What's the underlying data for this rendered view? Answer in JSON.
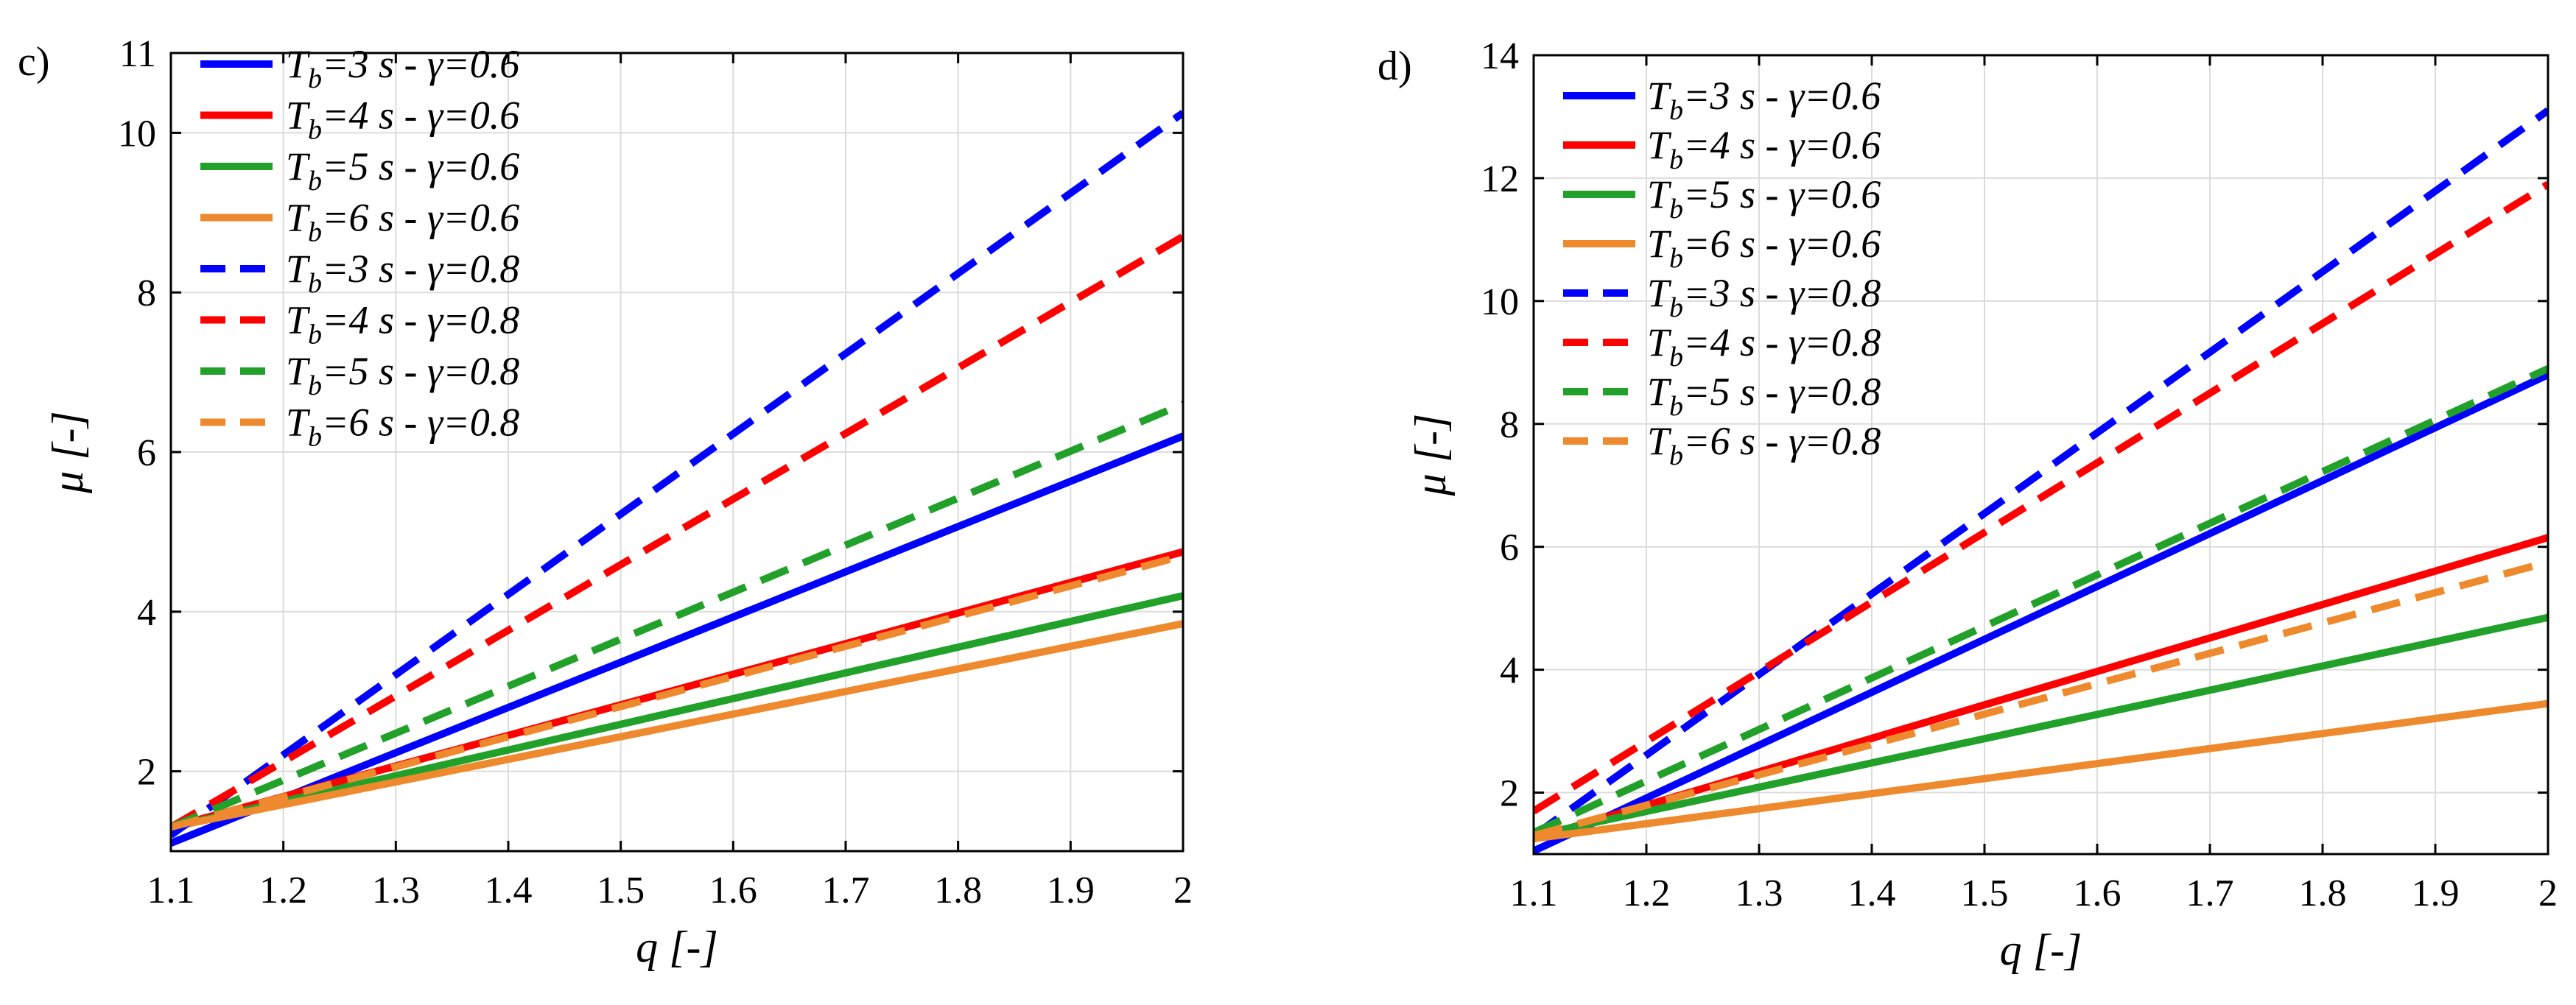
{
  "figure": {
    "description_free": true
  },
  "colors": {
    "blue": "#0000ff",
    "red": "#ff0000",
    "green": "#22a12a",
    "orange": "#ee8a2d",
    "grid": "#dcdcdc",
    "axes": "#000000"
  },
  "chart_data": [
    {
      "type": "line",
      "panel_label": "c)",
      "xlabel": "q [-]",
      "ylabel": "μ [-]",
      "xlim": [
        1.1,
        2.0
      ],
      "ylim": [
        1.0,
        11.0
      ],
      "xticks": [
        1.1,
        1.2,
        1.3,
        1.4,
        1.5,
        1.6,
        1.7,
        1.8,
        1.9,
        2.0
      ],
      "xtick_labels": [
        "1.1",
        "1.2",
        "1.3",
        "1.4",
        "1.5",
        "1.6",
        "1.7",
        "1.8",
        "1.9",
        "2"
      ],
      "yticks": [
        2,
        4,
        6,
        8,
        10,
        11
      ],
      "ytick_labels": [
        "2",
        "4",
        "6",
        "8",
        "10",
        "11"
      ],
      "grid": true,
      "legend_position": "top-left",
      "series": [
        {
          "name": "Tb=3 s - γ=0.6",
          "legend": {
            "base": "T",
            "sub": "b",
            "rest": "=3 s - γ=0.6"
          },
          "color": "blue",
          "style": "solid",
          "x": [
            1.1,
            2.0
          ],
          "y": [
            1.1,
            6.2
          ]
        },
        {
          "name": "Tb=4 s - γ=0.6",
          "legend": {
            "base": "T",
            "sub": "b",
            "rest": "=4 s - γ=0.6"
          },
          "color": "red",
          "style": "solid",
          "x": [
            1.1,
            2.0
          ],
          "y": [
            1.3,
            4.75
          ]
        },
        {
          "name": "Tb=5 s - γ=0.6",
          "legend": {
            "base": "T",
            "sub": "b",
            "rest": "=5 s - γ=0.6"
          },
          "color": "green",
          "style": "solid",
          "x": [
            1.1,
            2.0
          ],
          "y": [
            1.3,
            4.2
          ]
        },
        {
          "name": "Tb=6 s - γ=0.6",
          "legend": {
            "base": "T",
            "sub": "b",
            "rest": "=6 s - γ=0.6"
          },
          "color": "orange",
          "style": "solid",
          "x": [
            1.1,
            2.0
          ],
          "y": [
            1.3,
            3.85
          ]
        },
        {
          "name": "Tb=3 s - γ=0.8",
          "legend": {
            "base": "T",
            "sub": "b",
            "rest": "=3 s - γ=0.8"
          },
          "color": "blue",
          "style": "dashed",
          "x": [
            1.1,
            2.0
          ],
          "y": [
            1.2,
            10.25
          ]
        },
        {
          "name": "Tb=4 s - γ=0.8",
          "legend": {
            "base": "T",
            "sub": "b",
            "rest": "=4 s - γ=0.8"
          },
          "color": "red",
          "style": "dashed",
          "x": [
            1.1,
            2.0
          ],
          "y": [
            1.3,
            8.7
          ]
        },
        {
          "name": "Tb=5 s - γ=0.8",
          "legend": {
            "base": "T",
            "sub": "b",
            "rest": "=5 s - γ=0.8"
          },
          "color": "green",
          "style": "dashed",
          "x": [
            1.1,
            2.0
          ],
          "y": [
            1.3,
            6.6
          ]
        },
        {
          "name": "Tb=6 s - γ=0.8",
          "legend": {
            "base": "T",
            "sub": "b",
            "rest": "=6 s - γ=0.8"
          },
          "color": "orange",
          "style": "dashed",
          "x": [
            1.1,
            2.0
          ],
          "y": [
            1.3,
            4.7
          ]
        }
      ]
    },
    {
      "type": "line",
      "panel_label": "d)",
      "xlabel": "q [-]",
      "ylabel": "μ [-]",
      "xlim": [
        1.1,
        2.0
      ],
      "ylim": [
        1.0,
        14.0
      ],
      "xticks": [
        1.1,
        1.2,
        1.3,
        1.4,
        1.5,
        1.6,
        1.7,
        1.8,
        1.9,
        2.0
      ],
      "xtick_labels": [
        "1.1",
        "1.2",
        "1.3",
        "1.4",
        "1.5",
        "1.6",
        "1.7",
        "1.8",
        "1.9",
        "2"
      ],
      "yticks": [
        2,
        4,
        6,
        8,
        10,
        12,
        14
      ],
      "ytick_labels": [
        "2",
        "4",
        "6",
        "8",
        "10",
        "12",
        "14"
      ],
      "grid": true,
      "legend_position": "top-left",
      "series": [
        {
          "name": "Tb=3 s - γ=0.6",
          "legend": {
            "base": "T",
            "sub": "b",
            "rest": "=3 s - γ=0.6"
          },
          "color": "blue",
          "style": "solid",
          "x": [
            1.1,
            2.0
          ],
          "y": [
            1.05,
            8.8
          ]
        },
        {
          "name": "Tb=4 s - γ=0.6",
          "legend": {
            "base": "T",
            "sub": "b",
            "rest": "=4 s - γ=0.6"
          },
          "color": "red",
          "style": "solid",
          "x": [
            1.1,
            2.0
          ],
          "y": [
            1.25,
            6.15
          ]
        },
        {
          "name": "Tb=5 s - γ=0.6",
          "legend": {
            "base": "T",
            "sub": "b",
            "rest": "=5 s - γ=0.6"
          },
          "color": "green",
          "style": "solid",
          "x": [
            1.1,
            2.0
          ],
          "y": [
            1.3,
            4.85
          ]
        },
        {
          "name": "Tb=6 s - γ=0.6",
          "legend": {
            "base": "T",
            "sub": "b",
            "rest": "=6 s - γ=0.6"
          },
          "color": "orange",
          "style": "solid",
          "x": [
            1.1,
            2.0
          ],
          "y": [
            1.25,
            3.45
          ]
        },
        {
          "name": "Tb=3 s - γ=0.8",
          "legend": {
            "base": "T",
            "sub": "b",
            "rest": "=3 s - γ=0.8"
          },
          "color": "blue",
          "style": "dashed",
          "x": [
            1.1,
            2.0
          ],
          "y": [
            1.3,
            13.1
          ]
        },
        {
          "name": "Tb=4 s - γ=0.8",
          "legend": {
            "base": "T",
            "sub": "b",
            "rest": "=4 s - γ=0.8"
          },
          "color": "red",
          "style": "dashed",
          "x": [
            1.1,
            2.0
          ],
          "y": [
            1.7,
            11.9
          ]
        },
        {
          "name": "Tb=5 s - γ=0.8",
          "legend": {
            "base": "T",
            "sub": "b",
            "rest": "=5 s - γ=0.8"
          },
          "color": "green",
          "style": "dashed",
          "x": [
            1.1,
            2.0
          ],
          "y": [
            1.35,
            8.9
          ]
        },
        {
          "name": "Tb=6 s - γ=0.8",
          "legend": {
            "base": "T",
            "sub": "b",
            "rest": "=6 s - γ=0.8"
          },
          "color": "orange",
          "style": "dashed",
          "x": [
            1.1,
            2.0
          ],
          "y": [
            1.3,
            5.75
          ]
        }
      ]
    }
  ]
}
